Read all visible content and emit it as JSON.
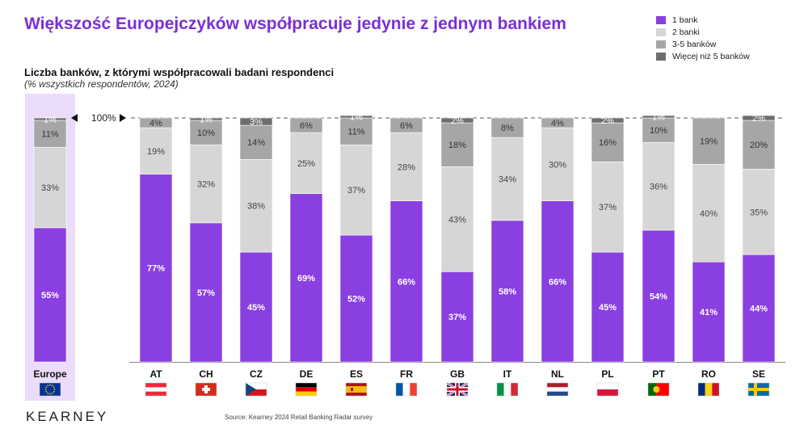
{
  "title": "Większość Europejczyków współpracuje jedynie z jednym bankiem",
  "subtitle": "Liczba banków, z którymi współpracowali badani respondenci",
  "subtitle_note": "(% wszystkich respondentów, 2024)",
  "source": "Source: Kearney 2024 Retail Banking Radar survey",
  "brand": "KEARNEY",
  "reference_label": "100%",
  "colors": {
    "one_bank": "#8a3fe0",
    "two_banks": "#d6d6d6",
    "three_five": "#a6a6a6",
    "more_than_five": "#6e6e6e",
    "europe_bg": "#eadcfa"
  },
  "legend": [
    {
      "label": "1 bank",
      "color": "#8a3fe0"
    },
    {
      "label": "2 banki",
      "color": "#d6d6d6"
    },
    {
      "label": "3-5 banków",
      "color": "#a6a6a6"
    },
    {
      "label": "Więcej niż 5 banków",
      "color": "#6e6e6e"
    }
  ],
  "chart_data": {
    "type": "bar",
    "stacked": true,
    "categories": [
      "Europe",
      "AT",
      "CH",
      "CZ",
      "DE",
      "ES",
      "FR",
      "GB",
      "IT",
      "NL",
      "PL",
      "PT",
      "RO",
      "SE"
    ],
    "flags": [
      "eu-flag-icon",
      "austria-flag-icon",
      "switzerland-flag-icon",
      "czechia-flag-icon",
      "germany-flag-icon",
      "spain-flag-icon",
      "france-flag-icon",
      "uk-flag-icon",
      "italy-flag-icon",
      "netherlands-flag-icon",
      "poland-flag-icon",
      "portugal-flag-icon",
      "romania-flag-icon",
      "sweden-flag-icon"
    ],
    "series": [
      {
        "name": "1 bank",
        "values": [
          55,
          77,
          57,
          45,
          69,
          52,
          66,
          37,
          58,
          66,
          45,
          54,
          41,
          44
        ]
      },
      {
        "name": "2 banki",
        "values": [
          33,
          19,
          32,
          38,
          25,
          37,
          28,
          43,
          34,
          30,
          37,
          36,
          40,
          35
        ]
      },
      {
        "name": "3-5 banków",
        "values": [
          11,
          4,
          10,
          14,
          6,
          11,
          6,
          18,
          8,
          4,
          16,
          10,
          19,
          20
        ]
      },
      {
        "name": "Więcej niż 5 banków",
        "values": [
          1,
          0,
          1,
          3,
          0,
          1,
          0,
          2,
          0,
          0,
          2,
          1,
          0,
          2
        ]
      }
    ],
    "labels": [
      [
        "55%",
        "77%",
        "57%",
        "45%",
        "69%",
        "52%",
        "66%",
        "37%",
        "58%",
        "66%",
        "45%",
        "54%",
        "41%",
        "44%"
      ],
      [
        "33%",
        "19%",
        "32%",
        "38%",
        "25%",
        "37%",
        "28%",
        "43%",
        "34%",
        "30%",
        "37%",
        "36%",
        "40%",
        "35%"
      ],
      [
        "11%",
        "4%",
        "10%",
        "14%",
        "6%",
        "11%",
        "6%",
        "18%",
        "8%",
        "4%",
        "16%",
        "10%",
        "19%",
        "20%"
      ],
      [
        "1%",
        "",
        "1%",
        "3%",
        "",
        "1%",
        "",
        "2%",
        "",
        "",
        "2%",
        "1%",
        "",
        "2%"
      ]
    ],
    "ylim": [
      0,
      100
    ]
  }
}
